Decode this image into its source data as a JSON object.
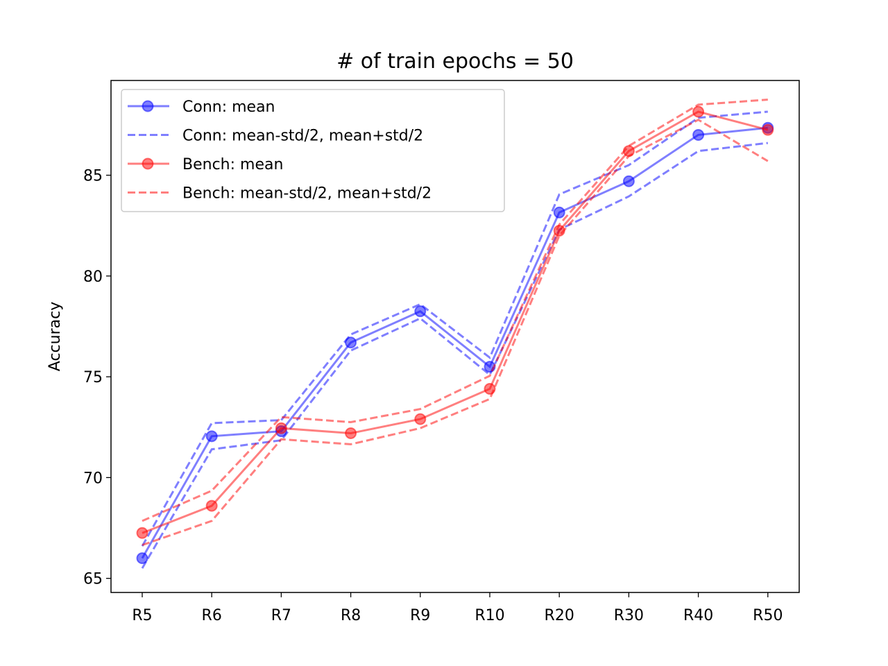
{
  "chart_data": {
    "type": "line",
    "title": "# of train epochs = 50",
    "xlabel": "",
    "ylabel": "Accuracy",
    "categories": [
      "R5",
      "R6",
      "R7",
      "R8",
      "R9",
      "R10",
      "R20",
      "R30",
      "R40",
      "R50"
    ],
    "yticks": [
      65,
      70,
      75,
      80,
      85
    ],
    "ylim": [
      64.3,
      89.7
    ],
    "grid": false,
    "legend_position": "top-left",
    "series": [
      {
        "name": "Conn: mean",
        "style": "solid-marker",
        "color": "#0000ff",
        "values": [
          66.0,
          72.05,
          72.3,
          76.7,
          78.25,
          75.5,
          83.15,
          84.7,
          87.0,
          87.35
        ]
      },
      {
        "name": "Conn: mean-std/2, mean+std/2",
        "style": "dashed",
        "color": "#0000ff",
        "lower": [
          65.5,
          71.4,
          71.85,
          76.3,
          77.9,
          75.1,
          82.3,
          83.95,
          86.2,
          86.6
        ],
        "upper": [
          66.6,
          72.7,
          72.85,
          77.1,
          78.6,
          75.95,
          84.05,
          85.5,
          87.85,
          88.15
        ]
      },
      {
        "name": "Bench: mean",
        "style": "solid-marker",
        "color": "#ff0000",
        "values": [
          67.25,
          68.6,
          72.45,
          72.2,
          72.9,
          74.4,
          82.25,
          86.2,
          88.15,
          87.25
        ]
      },
      {
        "name": "Bench: mean-std/2, mean+std/2",
        "style": "dashed",
        "color": "#ff0000",
        "lower": [
          66.65,
          67.85,
          71.9,
          71.65,
          72.45,
          73.9,
          82.0,
          85.95,
          87.75,
          85.7
        ],
        "upper": [
          67.85,
          69.35,
          73.0,
          72.75,
          73.4,
          75.05,
          82.55,
          86.45,
          88.5,
          88.75
        ]
      }
    ]
  }
}
